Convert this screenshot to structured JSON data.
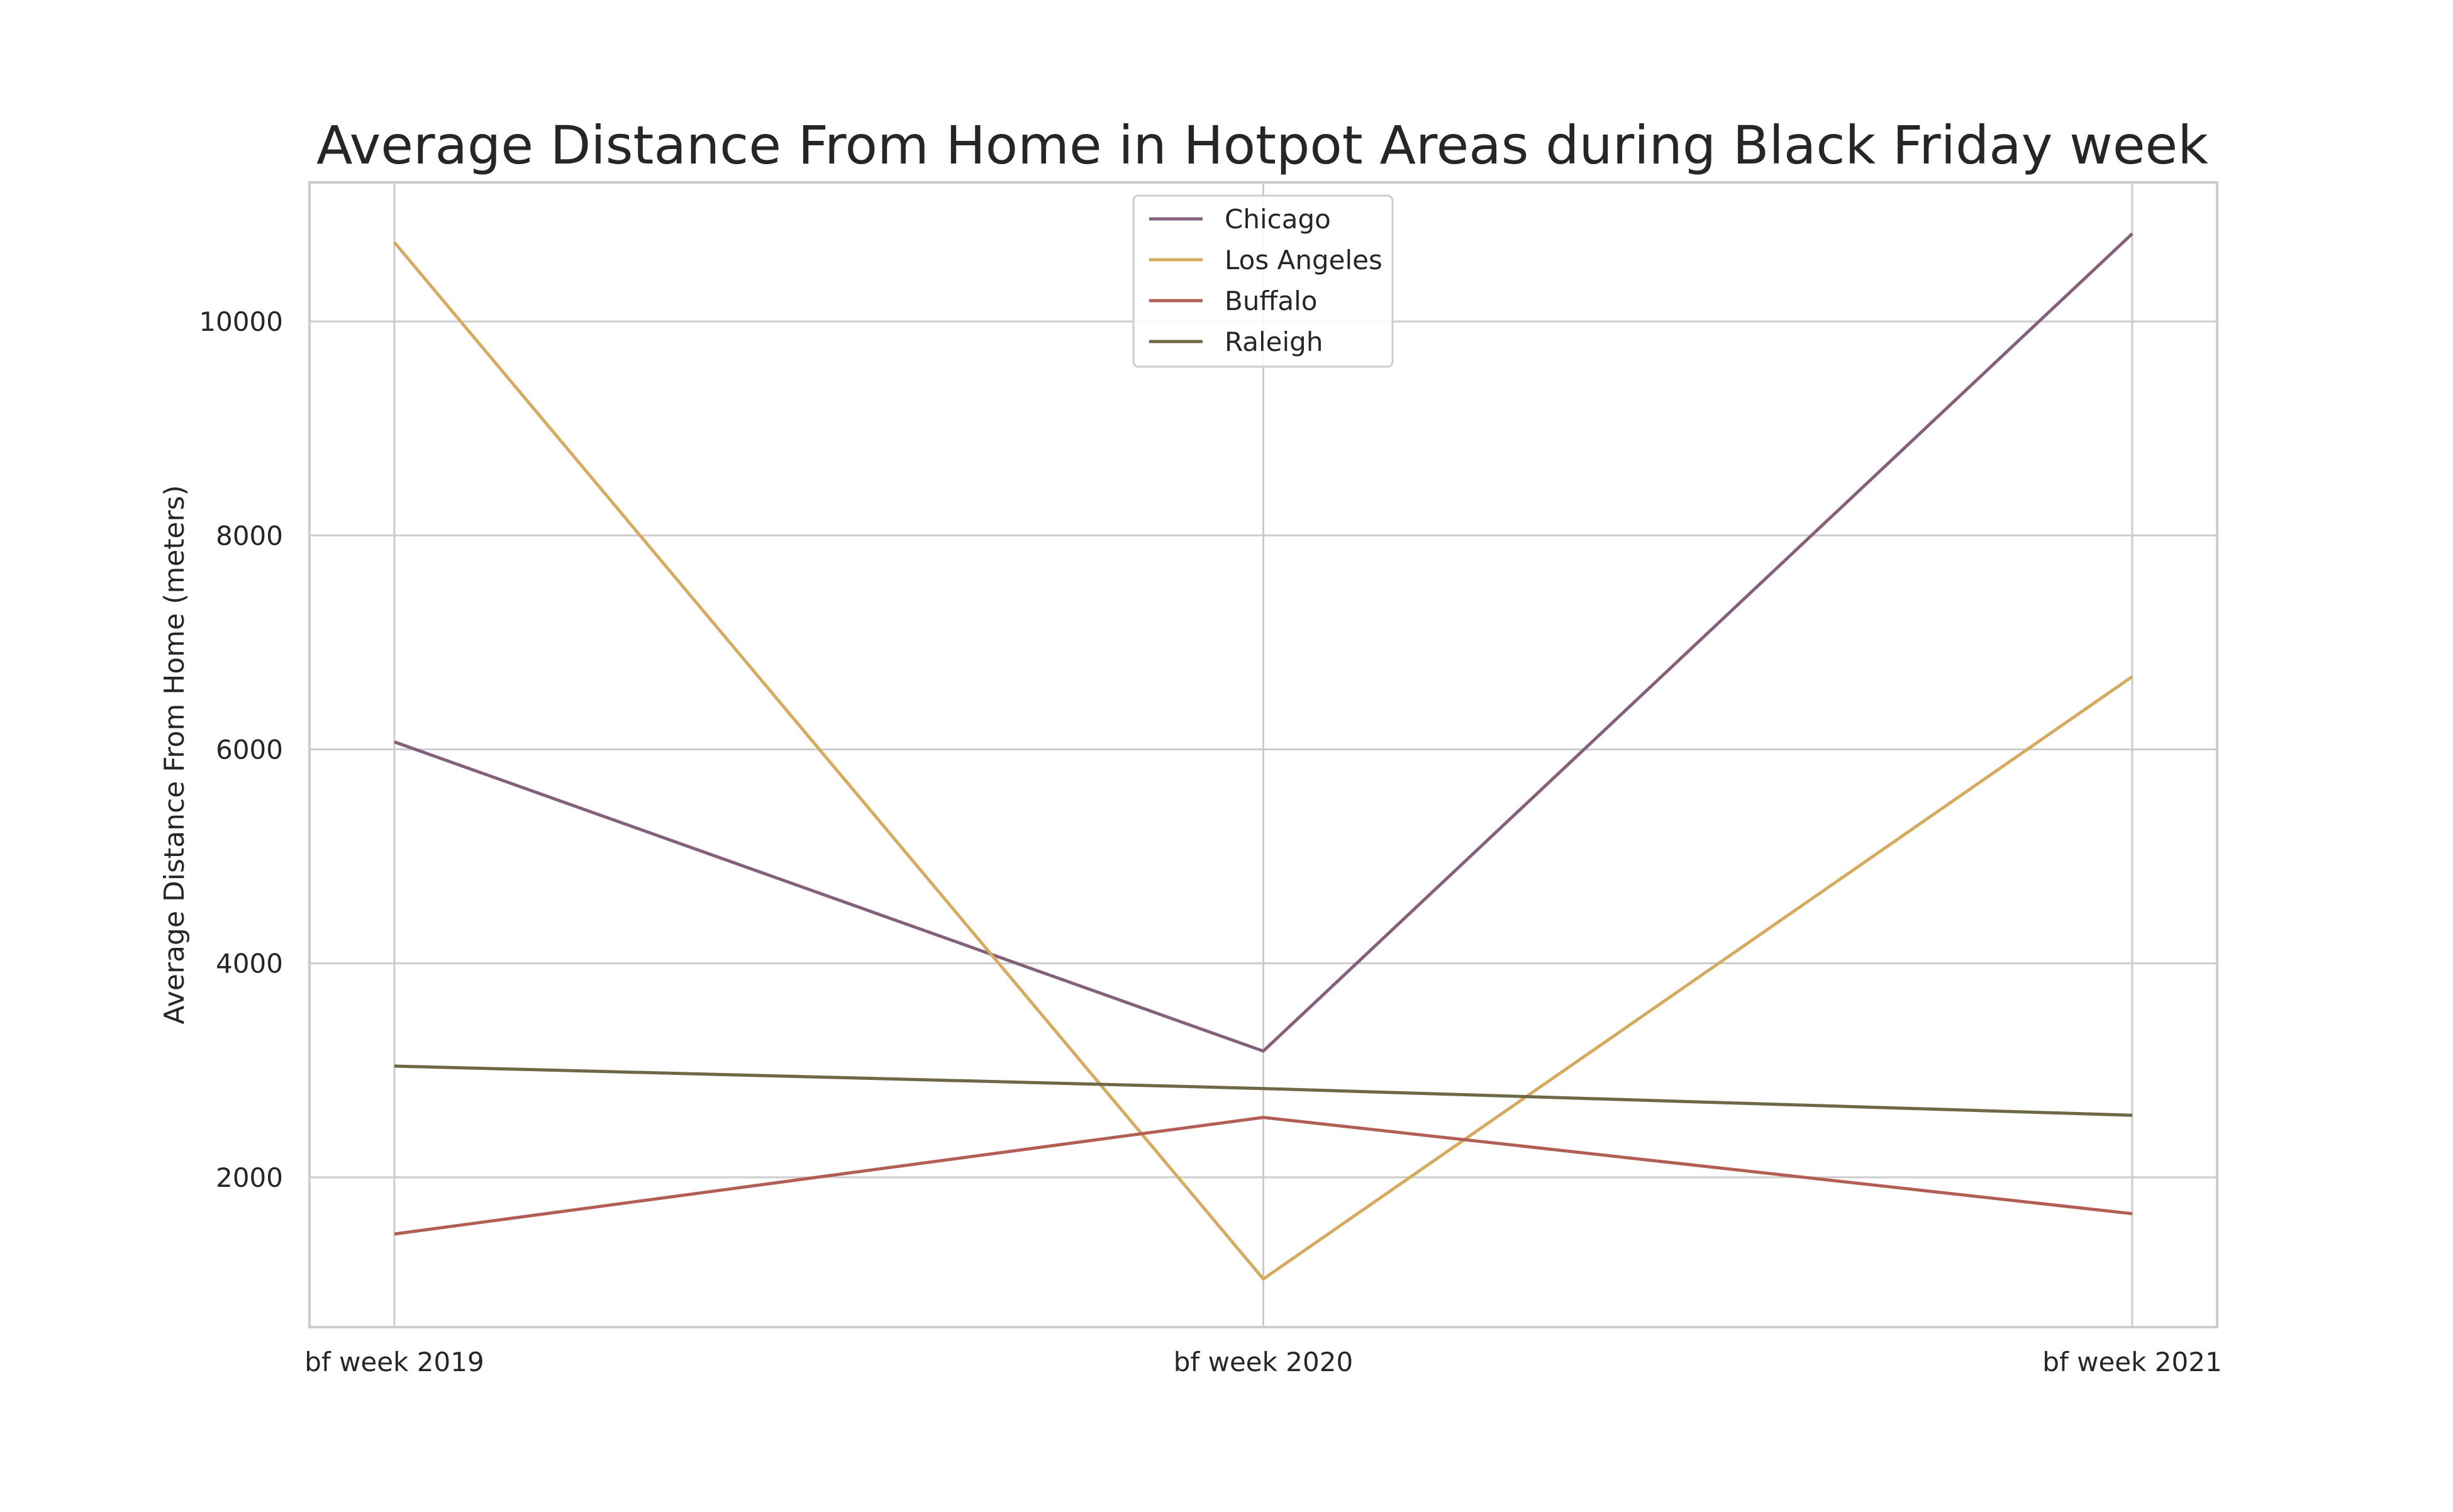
{
  "chart_data": {
    "type": "line",
    "title": "Average Distance From Home in Hotpot Areas during Black Friday week",
    "xlabel": "",
    "ylabel": "Average Distance From Home (meters)",
    "categories": [
      "bf week 2019",
      "bf week 2020",
      "bf week 2021"
    ],
    "ylim": [
      600,
      11300
    ],
    "yticks": [
      2000,
      4000,
      6000,
      8000,
      10000
    ],
    "grid": true,
    "legend_position": "top-center",
    "series": [
      {
        "name": "Chicago",
        "color": "#85607b",
        "values": [
          6070,
          3180,
          10820
        ]
      },
      {
        "name": "Los Angeles",
        "color": "#d6aa5f",
        "values": [
          10740,
          1050,
          6680
        ]
      },
      {
        "name": "Buffalo",
        "color": "#b35e55",
        "values": [
          1470,
          2560,
          1660
        ]
      },
      {
        "name": "Raleigh",
        "color": "#6f6847",
        "values": [
          3040,
          2830,
          2580
        ]
      }
    ]
  }
}
